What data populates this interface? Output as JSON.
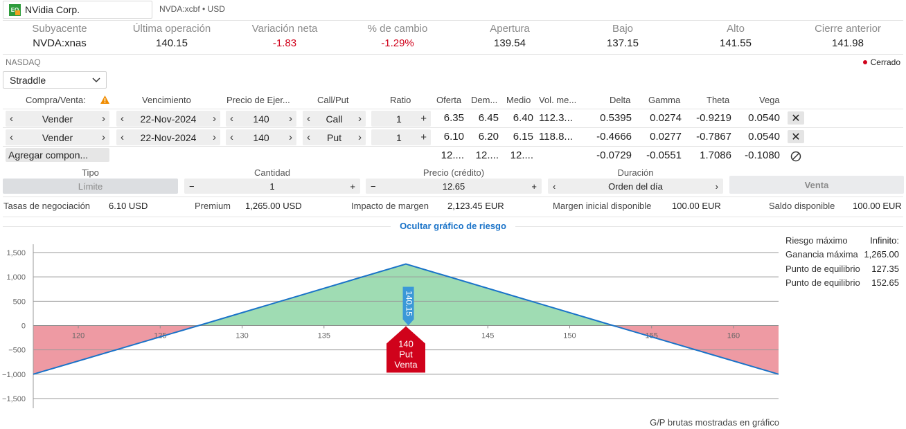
{
  "header": {
    "symbol_name": "NVidia Corp.",
    "logo_text": "EQ",
    "symbol_meta": "NVDA:xcbf • USD"
  },
  "quote": [
    {
      "label": "Subyacente",
      "value": "NVDA:xnas",
      "color": "#1f1f1f"
    },
    {
      "label": "Última operación",
      "value": "140.15",
      "color": "#1f1f1f"
    },
    {
      "label": "Variación neta",
      "value": "-1.83",
      "color": "#d0021b"
    },
    {
      "label": "% de cambio",
      "value": "-1.29%",
      "color": "#d0021b"
    },
    {
      "label": "Apertura",
      "value": "139.54",
      "color": "#1f1f1f"
    },
    {
      "label": "Bajo",
      "value": "137.15",
      "color": "#1f1f1f"
    },
    {
      "label": "Alto",
      "value": "141.55",
      "color": "#1f1f1f"
    },
    {
      "label": "Cierre anterior",
      "value": "141.98",
      "color": "#1f1f1f"
    }
  ],
  "exchange": "NASDAQ",
  "market_status": "Cerrado",
  "strategy_select": "Straddle",
  "table_headers": {
    "side": "Compra/Venta:",
    "expiry": "Vencimiento",
    "strike": "Precio de Ejer...",
    "callput": "Call/Put",
    "ratio": "Ratio",
    "bid": "Oferta",
    "ask": "Dem...",
    "mid": "Medio",
    "vol": "Vol. me...",
    "delta": "Delta",
    "gamma": "Gamma",
    "theta": "Theta",
    "vega": "Vega"
  },
  "legs": [
    {
      "side": "Vender",
      "expiry": "22-Nov-2024",
      "strike": "140",
      "type": "Call",
      "ratio": "1",
      "bid": "6.35",
      "ask": "6.45",
      "mid": "6.40",
      "vol": "112.3...",
      "delta": "0.5395",
      "gamma": "0.0274",
      "theta": "-0.9219",
      "vega": "0.0540"
    },
    {
      "side": "Vender",
      "expiry": "22-Nov-2024",
      "strike": "140",
      "type": "Put",
      "ratio": "1",
      "bid": "6.10",
      "ask": "6.20",
      "mid": "6.15",
      "vol": "118.8...",
      "delta": "-0.4666",
      "gamma": "0.0277",
      "theta": "-0.7867",
      "vega": "0.0540"
    }
  ],
  "totals": {
    "bid": "12....",
    "ask": "12....",
    "mid": "12....",
    "delta": "-0.0729",
    "gamma": "-0.0551",
    "theta": "1.7086",
    "vega": "-0.1080"
  },
  "add_component_label": "Agregar compon...",
  "order": {
    "type_label": "Tipo",
    "type_value": "Límite",
    "qty_label": "Cantidad",
    "qty_value": "1",
    "price_label": "Precio (crédito)",
    "price_value": "12.65",
    "duration_label": "Duración",
    "duration_value": "Orden del día",
    "submit_label": "Venta"
  },
  "fees": [
    {
      "label": "Tasas de negociación",
      "value": "6.10 USD"
    },
    {
      "label": "Premium",
      "value": "1,265.00 USD"
    },
    {
      "label": "Impacto de margen",
      "value": "2,123.45 EUR"
    },
    {
      "label": "Margen inicial disponible",
      "value": "100.00 EUR"
    },
    {
      "label": "Saldo disponible",
      "value": "100.00 EUR"
    }
  ],
  "hide_chart_label": "Ocultar gráfico de riesgo",
  "risk_summary": [
    {
      "label": "Riesgo máximo",
      "value": "Infinito:"
    },
    {
      "label": "Ganancia máxima",
      "value": "1,265.00"
    },
    {
      "label": "Punto de equilibrio",
      "value": "127.35"
    },
    {
      "label": "Punto de equilibrio",
      "value": "152.65"
    }
  ],
  "chart_note": "G/P brutas mostradas en gráfico",
  "chart_data": {
    "type": "line",
    "x": [
      117.25,
      127.35,
      140,
      152.65,
      162.75
    ],
    "y": [
      -1000,
      0,
      1265,
      0,
      -1000
    ],
    "xticks": [
      "120",
      "125",
      "130",
      "135",
      "140",
      "145",
      "150",
      "155",
      "160"
    ],
    "yticks": [
      "1,500",
      "1,000",
      "500",
      "0",
      "−500",
      "−1,000",
      "−1,500"
    ],
    "xlim": [
      117.25,
      162.75
    ],
    "ylim": [
      -1500,
      1500
    ],
    "current_price_label": "140.15",
    "leg_marker": [
      "140",
      "Put",
      "Venta"
    ],
    "colors": {
      "line": "#1a73c8",
      "profit": "#9fdcb3",
      "loss": "#ee9aa3",
      "marker": "#d0021b",
      "price_tag": "#3b98d8"
    }
  }
}
